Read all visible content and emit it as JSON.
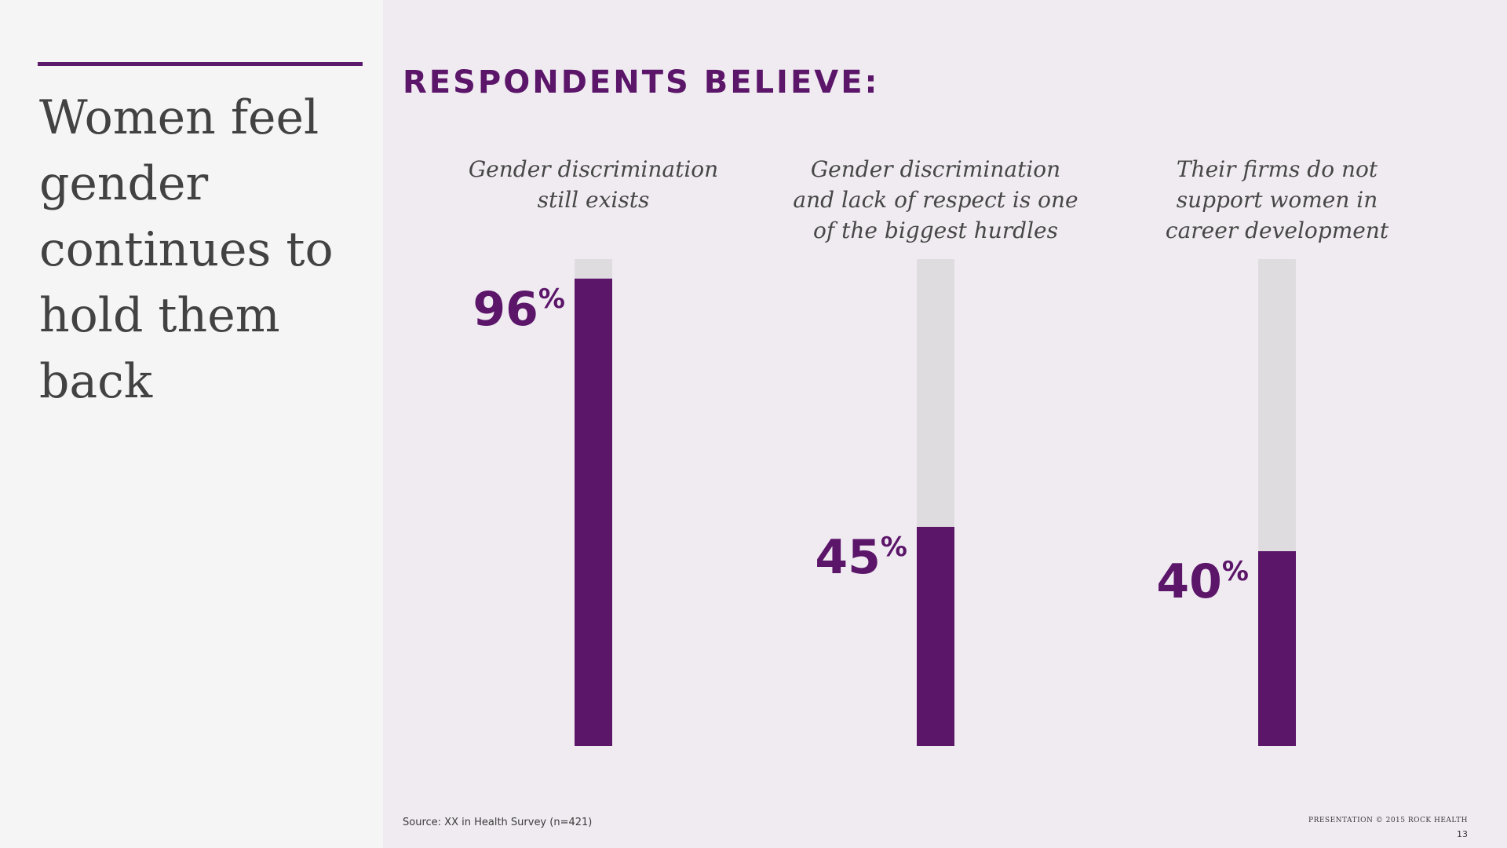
{
  "slide": {
    "headline": "Women feel gender continues to hold them back",
    "section_title": "RESPONDENTS BELIEVE:",
    "source": "Source: XX in Health Survey (n=421)",
    "footer_credit": "PRESENTATION © 2015 ROCK HEALTH",
    "page_number": "13"
  },
  "colors": {
    "accent": "#5b1569",
    "track": "#dedcdf",
    "right_background": "#f0ebf1",
    "left_background": "#f5f5f6"
  },
  "chart_data": {
    "type": "bar",
    "categories": [
      [
        "Gender discrimination",
        "still exists"
      ],
      [
        "Gender discrimination",
        "and lack of respect is one",
        "of the biggest hurdles"
      ],
      [
        "Their firms do not",
        "support women in",
        "career development"
      ]
    ],
    "values": [
      96,
      45,
      40
    ],
    "value_labels": [
      "96",
      "45",
      "40"
    ],
    "unit": "%",
    "ylim": [
      0,
      100
    ],
    "grid": false,
    "orientation": "vertical"
  }
}
